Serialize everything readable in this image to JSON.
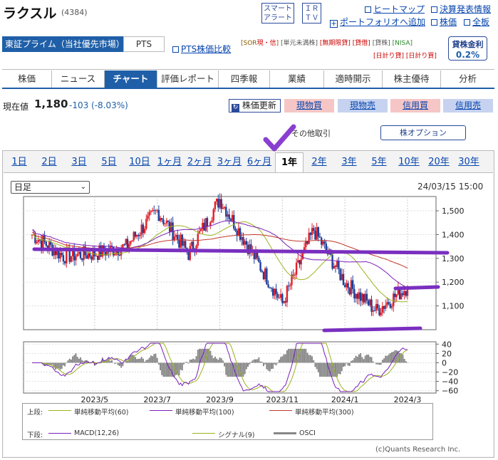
{
  "header": {
    "company_name": "ラクスル",
    "code": "(4384)",
    "btn_smart_alert": [
      "スマート",
      "アラート"
    ],
    "btn_ir_tv": [
      "ＩＲ",
      "ＴＶ"
    ],
    "links": {
      "heatmap": "ヒートマップ",
      "earnings": "決算発表情報",
      "portfolio": "ポートフォリオへ追加",
      "stock_price": "株価",
      "full_board": "全板"
    }
  },
  "market": {
    "primary_tab": "東証プライム（当社優先市場）",
    "pts_tab": "PTS",
    "pts_compare": "PTS株価比較",
    "tags_row1": [
      "[SOR",
      "現・信",
      "]",
      "[単元未満株]",
      "[無期限貸]",
      "[貸借]",
      "[貸株]",
      "[NISA]"
    ],
    "tags_row2": [
      "[日計り貸]",
      "[日計り買]"
    ],
    "lending_rate_label": "貸株金利",
    "lending_rate_value": "0.2%"
  },
  "nav_tabs": [
    "株価",
    "ニュース",
    "チャート",
    "評価レポート",
    "四季報",
    "業績",
    "適時開示",
    "株主優待",
    "分析"
  ],
  "price": {
    "label": "現在値",
    "value": "1,180",
    "change": "-103 (-8.03%)",
    "refresh_button": "株価更新"
  },
  "trade_buttons": [
    {
      "label": "現物買",
      "color": "#f6c6c6"
    },
    {
      "label": "現物売",
      "color": "#c6d2ef"
    },
    {
      "label": "信用買",
      "color": "#f6c6c6"
    },
    {
      "label": "信用売",
      "color": "#c6d2ef"
    }
  ],
  "other": {
    "other_trades": "その他取引",
    "stock_option": "株オプション"
  },
  "period_tabs": [
    "1日",
    "2日",
    "3日",
    "5日",
    "10日",
    "1ヶ月",
    "2ヶ月",
    "3ヶ月",
    "6ヶ月",
    "1年",
    "2年",
    "3年",
    "5年",
    "10年",
    "20年",
    "30年"
  ],
  "active_period": "1年",
  "chart_controls": {
    "interval_select": "日足",
    "timestamp": "24/03/15 15:00"
  },
  "chart_data": [
    {
      "type": "candlestick",
      "x_ticks": [
        "2023/5",
        "2023/7",
        "2023/9",
        "2023/11",
        "2024/1",
        "2024/3"
      ],
      "y_ticks": [
        "1,500",
        "1,400",
        "1,300",
        "1,200",
        "1,100"
      ],
      "ylim": [
        1000,
        1560
      ],
      "close_approx": [
        {
          "date": "2023-03",
          "price": 1400
        },
        {
          "date": "2023-04",
          "price": 1310
        },
        {
          "date": "2023-05",
          "price": 1320
        },
        {
          "date": "2023-06",
          "price": 1350
        },
        {
          "date": "2023-07",
          "price": 1500
        },
        {
          "date": "2023-08",
          "price": 1320
        },
        {
          "date": "2023-09",
          "price": 1550
        },
        {
          "date": "2023-10",
          "price": 1330
        },
        {
          "date": "2023-11",
          "price": 1110
        },
        {
          "date": "2023-12",
          "price": 1420
        },
        {
          "date": "2024-01",
          "price": 1200
        },
        {
          "date": "2024-02",
          "price": 1080
        },
        {
          "date": "2024-03",
          "price": 1180
        }
      ],
      "moving_averages": [
        {
          "name": "単純移動平均(60)",
          "color": "#9bb320"
        },
        {
          "name": "単純移動平均(100)",
          "color": "#7a1fb8"
        },
        {
          "name": "単純移動平均(300)",
          "color": "#c0392b"
        }
      ],
      "legend_prefix": "上段:"
    },
    {
      "type": "line",
      "y_ticks": [
        "40",
        "20",
        "0",
        "−20",
        "−40",
        "−60"
      ],
      "ylim": [
        -65,
        45
      ],
      "series": [
        {
          "name": "MACD(12,26)",
          "color": "#7a1fb8"
        },
        {
          "name": "シグナル(9)",
          "color": "#9bb320"
        },
        {
          "name": "OSCI",
          "color": "#888888"
        }
      ],
      "legend_prefix": "下段:"
    }
  ],
  "copyright": "(c)Quants Research Inc."
}
